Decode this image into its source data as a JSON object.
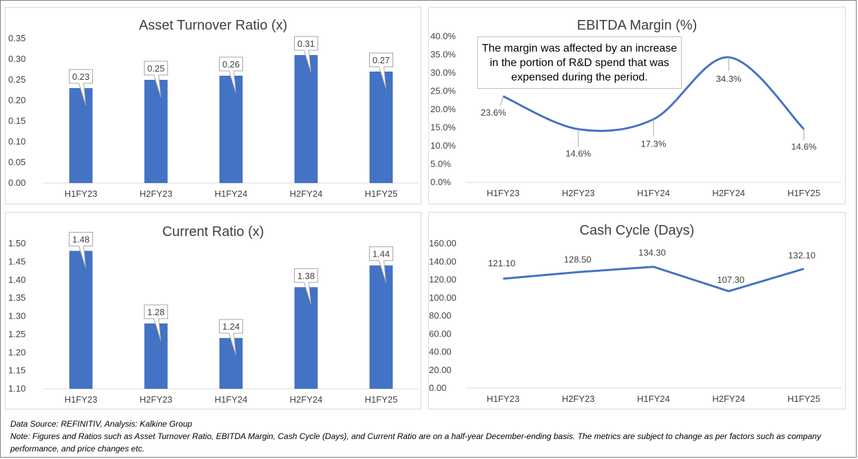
{
  "charts": {
    "asset_turnover": {
      "chart_data": {
        "type": "bar",
        "title": "Asset Turnover Ratio (x)",
        "categories": [
          "H1FY23",
          "H2FY23",
          "H1FY24",
          "H2FY24",
          "H1FY25"
        ],
        "values": [
          0.23,
          0.25,
          0.26,
          0.31,
          0.27
        ],
        "data_labels": [
          "0.23",
          "0.25",
          "0.26",
          "0.31",
          "0.27"
        ],
        "ylim": [
          0,
          0.35
        ],
        "yticks": [
          "0.00",
          "0.05",
          "0.10",
          "0.15",
          "0.20",
          "0.25",
          "0.30",
          "0.35"
        ],
        "color": "#4472c4",
        "grid": false
      }
    },
    "ebitda_margin": {
      "chart_data": {
        "type": "line",
        "title": "EBITDA Margin (%)",
        "categories": [
          "H1FY23",
          "H2FY23",
          "H1FY24",
          "H2FY24",
          "H1FY25"
        ],
        "values": [
          23.6,
          14.6,
          17.3,
          34.3,
          14.6
        ],
        "data_labels": [
          "23.6%",
          "14.6%",
          "17.3%",
          "34.3%",
          "14.6%"
        ],
        "ylim": [
          0,
          40
        ],
        "yticks": [
          "0.0%",
          "5.0%",
          "10.0%",
          "15.0%",
          "20.0%",
          "25.0%",
          "30.0%",
          "35.0%",
          "40.0%"
        ],
        "color": "#4472c4",
        "smooth": true,
        "grid": false,
        "annotation": "The margin was affected by an increase in the portion of R&D spend that was expensed during the period."
      }
    },
    "current_ratio": {
      "chart_data": {
        "type": "bar",
        "title": "Current Ratio (x)",
        "categories": [
          "H1FY23",
          "H2FY23",
          "H1FY24",
          "H2FY24",
          "H1FY25"
        ],
        "values": [
          1.48,
          1.28,
          1.24,
          1.38,
          1.44
        ],
        "data_labels": [
          "1.48",
          "1.28",
          "1.24",
          "1.38",
          "1.44"
        ],
        "ylim": [
          1.1,
          1.5
        ],
        "yticks": [
          "1.10",
          "1.15",
          "1.20",
          "1.25",
          "1.30",
          "1.35",
          "1.40",
          "1.45",
          "1.50"
        ],
        "color": "#4472c4",
        "grid": false
      }
    },
    "cash_cycle": {
      "chart_data": {
        "type": "line",
        "title": "Cash Cycle (Days)",
        "categories": [
          "H1FY23",
          "H2FY23",
          "H1FY24",
          "H2FY24",
          "H1FY25"
        ],
        "values": [
          121.1,
          128.5,
          134.3,
          107.3,
          132.1
        ],
        "data_labels": [
          "121.10",
          "128.50",
          "134.30",
          "107.30",
          "132.10"
        ],
        "ylim": [
          0,
          160
        ],
        "yticks": [
          "0.00",
          "20.00",
          "40.00",
          "60.00",
          "80.00",
          "100.00",
          "120.00",
          "140.00",
          "160.00"
        ],
        "color": "#4472c4",
        "smooth": false,
        "grid": false
      }
    }
  },
  "footer": {
    "source": "Data Source: REFINITIV, Analysis: Kalkine Group",
    "note": "Note: Figures and Ratios such as Asset Turnover Ratio, EBITDA Margin, Cash Cycle (Days), and Current Ratio  are on a half-year December-ending basis. The metrics are subject to change as per factors such as company performance, and price changes etc."
  }
}
